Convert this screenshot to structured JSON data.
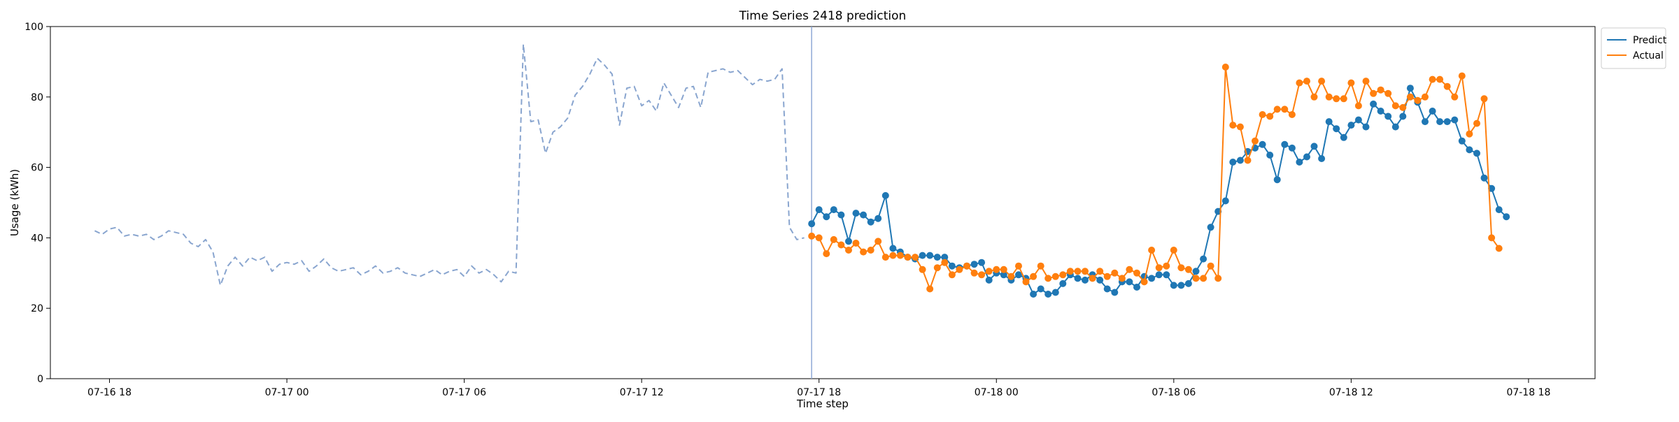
{
  "chart_data": {
    "type": "line",
    "title": "Time Series 2418 prediction",
    "xlabel": "Time step",
    "ylabel": "Usage (kWh)",
    "ylim": [
      0,
      100
    ],
    "yticks": [
      0,
      20,
      40,
      60,
      80,
      100
    ],
    "xlim": [
      "2024-07-16 16:00",
      "2024-07-18 20:15"
    ],
    "xticks": [
      {
        "t": "2024-07-16 18:00",
        "label": "07-16 18"
      },
      {
        "t": "2024-07-17 00:00",
        "label": "07-17 00"
      },
      {
        "t": "2024-07-17 06:00",
        "label": "07-17 06"
      },
      {
        "t": "2024-07-17 12:00",
        "label": "07-17 12"
      },
      {
        "t": "2024-07-17 18:00",
        "label": "07-17 18"
      },
      {
        "t": "2024-07-18 00:00",
        "label": "07-18 00"
      },
      {
        "t": "2024-07-18 06:00",
        "label": "07-18 06"
      },
      {
        "t": "2024-07-18 12:00",
        "label": "07-18 12"
      },
      {
        "t": "2024-07-18 18:00",
        "label": "07-18 18"
      }
    ],
    "grid": false,
    "legend_position": "top-right",
    "vline": "2024-07-17 17:45",
    "interval_minutes": 15,
    "series": [
      {
        "name": "",
        "style": "dashed",
        "color": "#89a5cf",
        "start": "2024-07-16 17:30",
        "values": [
          42,
          41,
          42.5,
          43,
          40.5,
          41,
          40.5,
          41,
          39.5,
          40.5,
          42,
          41.5,
          41,
          38.5,
          37.5,
          39.5,
          36,
          26.5,
          32,
          34.5,
          32,
          34.5,
          33.5,
          34.5,
          30.5,
          32.5,
          33,
          32.5,
          33.5,
          30.5,
          32,
          34,
          31.5,
          30.5,
          31,
          31.5,
          29.5,
          30.5,
          32,
          30,
          30.5,
          31.5,
          30,
          29.5,
          29,
          30,
          31,
          29.5,
          30.5,
          31,
          29,
          32,
          30,
          31,
          29.5,
          27.5,
          30.5,
          30,
          95,
          73,
          73.5,
          64,
          70,
          71.5,
          74,
          80.5,
          83,
          86.5,
          91,
          89,
          86.5,
          72,
          82.5,
          83,
          77.5,
          79,
          76,
          84,
          80.5,
          77,
          82.5,
          83,
          77,
          87,
          87.5,
          88,
          87,
          87.5,
          85.5,
          83.5,
          85,
          84.5,
          85,
          88,
          43,
          39.5,
          40
        ]
      },
      {
        "name": "Predict",
        "style": "solid-marker",
        "color": "#1f77b4",
        "start": "2024-07-17 17:45",
        "values": [
          44,
          48,
          46,
          48,
          46.5,
          39,
          47,
          46.5,
          44.5,
          45.5,
          52,
          37,
          36,
          34.5,
          34,
          35,
          35,
          34.5,
          34.5,
          32,
          31.5,
          32,
          32.5,
          33,
          28,
          30,
          29.5,
          28,
          29.5,
          28.5,
          24,
          25.5,
          24,
          24.5,
          27,
          29.5,
          28.5,
          28,
          29.5,
          28,
          25.5,
          24.5,
          27.5,
          27.5,
          26,
          29,
          28.5,
          29.5,
          29.5,
          26.5,
          26.5,
          27,
          30.5,
          34,
          43,
          47.5,
          50.5,
          61.5,
          62,
          64.5,
          65.5,
          66.5,
          63.5,
          56.5,
          66.5,
          65.5,
          61.5,
          63,
          66,
          62.5,
          73,
          71,
          68.5,
          72,
          73.5,
          71.5,
          78,
          76,
          74.5,
          71.5,
          74.5,
          82.5,
          78.5,
          73,
          76,
          73,
          73,
          73.5,
          67.5,
          65,
          64,
          57,
          54,
          48,
          46
        ]
      },
      {
        "name": "Actual",
        "style": "solid-marker",
        "color": "#ff7f0e",
        "start": "2024-07-17 17:45",
        "values": [
          40.5,
          40,
          35.5,
          39.5,
          38,
          36.5,
          38.5,
          36,
          36.5,
          39,
          34.5,
          35,
          35,
          34.5,
          34.5,
          31,
          25.5,
          31.5,
          33,
          29.5,
          31,
          32,
          30,
          29.5,
          30.5,
          31,
          31,
          29,
          32,
          27.5,
          29,
          32,
          28.5,
          29,
          29.5,
          30.5,
          30.5,
          30.5,
          28.5,
          30.5,
          29,
          30,
          28.5,
          31,
          30,
          27.5,
          36.5,
          31.5,
          32,
          36.5,
          31.5,
          31,
          28.5,
          28.5,
          32,
          28.5,
          88.5,
          72,
          71.5,
          62,
          67.5,
          75,
          74.5,
          76.5,
          76.5,
          75,
          84,
          84.5,
          80,
          84.5,
          80,
          79.5,
          79.5,
          84,
          77.5,
          84.5,
          81,
          82,
          81,
          77.5,
          77,
          80,
          79,
          80,
          85,
          85,
          83,
          80,
          86,
          69.5,
          72.5,
          79.5,
          40,
          37
        ]
      }
    ]
  }
}
